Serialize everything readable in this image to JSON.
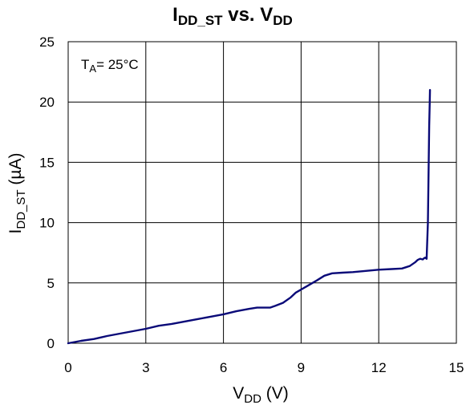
{
  "chart_data": {
    "type": "line",
    "title": {
      "main": "I",
      "sub1": "DD_ST",
      "mid": " vs. V",
      "sub2": "DD"
    },
    "xlabel": {
      "main": "V",
      "sub": "DD",
      "unit": " (V)"
    },
    "ylabel": {
      "main": "I",
      "sub": "DD_ST",
      "unit": " (µA)"
    },
    "annotation": {
      "main": "T",
      "sub": "A",
      "rest": "= 25°C"
    },
    "xlim": [
      0,
      15
    ],
    "ylim": [
      0,
      25
    ],
    "x_ticks": [
      0,
      3,
      6,
      9,
      12,
      15
    ],
    "y_ticks": [
      0,
      5,
      10,
      15,
      20,
      25
    ],
    "grid": true,
    "line_color": "#0a0a78",
    "series": [
      {
        "x": [
          0,
          0.5,
          1.0,
          1.5,
          2.0,
          2.5,
          3.0,
          3.5,
          4.0,
          4.5,
          5.0,
          5.5,
          6.0,
          6.5,
          7.0,
          7.3,
          7.8,
          8.0,
          8.3,
          8.6,
          8.8,
          9.2,
          9.6,
          9.9,
          10.2,
          10.6,
          11.0,
          11.5,
          12.0,
          12.5,
          12.9,
          13.2,
          13.4,
          13.5,
          13.6,
          13.7,
          13.75,
          13.8,
          13.85,
          13.9,
          13.93,
          13.95,
          13.97,
          13.98
        ],
        "y": [
          0,
          0.2,
          0.35,
          0.6,
          0.8,
          1.0,
          1.2,
          1.45,
          1.6,
          1.8,
          2.0,
          2.2,
          2.4,
          2.65,
          2.85,
          2.95,
          2.95,
          3.1,
          3.35,
          3.8,
          4.2,
          4.7,
          5.2,
          5.6,
          5.8,
          5.85,
          5.9,
          6.0,
          6.1,
          6.15,
          6.2,
          6.4,
          6.7,
          6.9,
          7.0,
          6.95,
          7.05,
          7.1,
          7.0,
          10.0,
          15.0,
          18.0,
          20.0,
          21.0
        ]
      }
    ]
  }
}
